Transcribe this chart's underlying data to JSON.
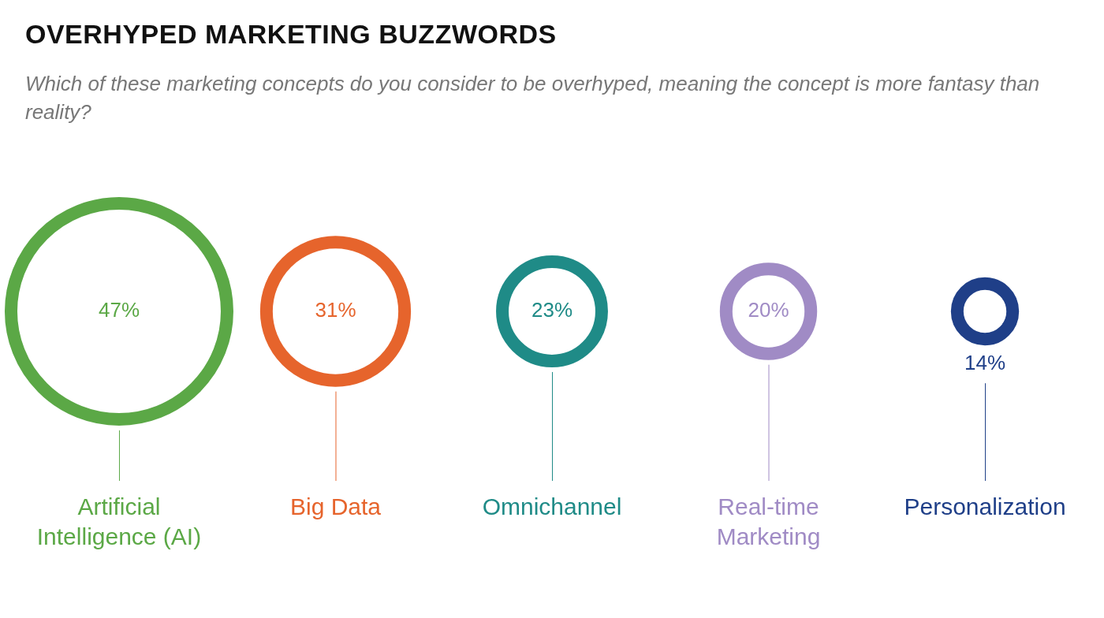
{
  "chart_data": {
    "type": "other",
    "title": "OVERHYPED MARKETING BUZZWORDS",
    "subtitle": "Which of these marketing concepts do you consider to be overhyped, meaning the concept is more fantasy than reality?",
    "categories": [
      "Artificial Intelligence (AI)",
      "Big Data",
      "Omnichannel",
      "Real-time Marketing",
      "Personalization"
    ],
    "values": [
      47,
      31,
      23,
      20,
      14
    ],
    "value_labels": [
      "47%",
      "31%",
      "23%",
      "20%",
      "14%"
    ],
    "colors": [
      "#5ba846",
      "#e6642c",
      "#1f8b87",
      "#a08bc5",
      "#1f3f88"
    ]
  }
}
